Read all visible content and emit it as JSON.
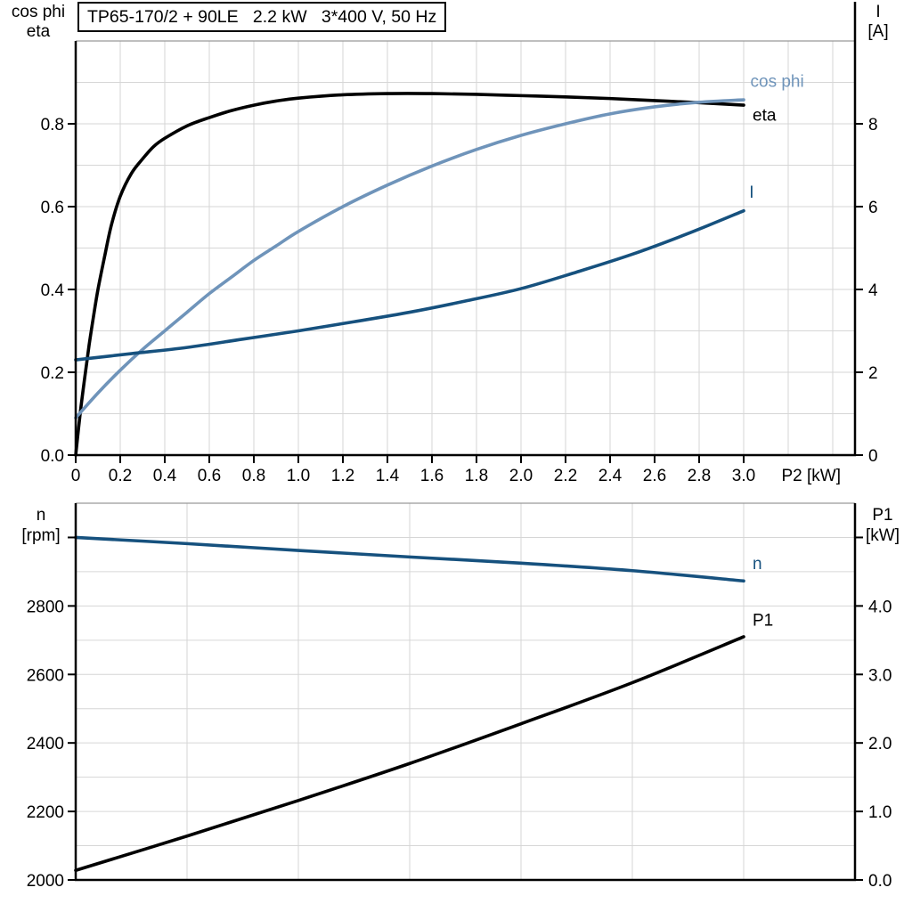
{
  "chart_data": [
    {
      "type": "line",
      "title": "TP65-170/2 + 90LE   2.2 kW   3*400 V, 50 Hz",
      "x_axis": {
        "label": "P2 [kW]",
        "label_x": 3.17,
        "min": 0,
        "max": 3.5,
        "grid_step": 0.2,
        "ticks": [
          {
            "v": 0,
            "t": "0"
          },
          {
            "v": 0.2,
            "t": "0.2"
          },
          {
            "v": 0.4,
            "t": "0.4"
          },
          {
            "v": 0.6,
            "t": "0.6"
          },
          {
            "v": 0.8,
            "t": "0.8"
          },
          {
            "v": 1.0,
            "t": "1.0"
          },
          {
            "v": 1.2,
            "t": "1.2"
          },
          {
            "v": 1.4,
            "t": "1.4"
          },
          {
            "v": 1.6,
            "t": "1.6"
          },
          {
            "v": 1.8,
            "t": "1.8"
          },
          {
            "v": 2.0,
            "t": "2.0"
          },
          {
            "v": 2.2,
            "t": "2.2"
          },
          {
            "v": 2.4,
            "t": "2.4"
          },
          {
            "v": 2.6,
            "t": "2.6"
          },
          {
            "v": 2.8,
            "t": "2.8"
          },
          {
            "v": 3.0,
            "t": "3.0"
          }
        ]
      },
      "left_axis": {
        "label_lines": [
          "cos phi",
          "eta"
        ],
        "min": 0,
        "max": 1.0,
        "grid_step": 0.1,
        "ticks": [
          {
            "v": 0.0,
            "t": "0.0"
          },
          {
            "v": 0.2,
            "t": "0.2"
          },
          {
            "v": 0.4,
            "t": "0.4"
          },
          {
            "v": 0.6,
            "t": "0.6"
          },
          {
            "v": 0.8,
            "t": "0.8"
          }
        ]
      },
      "right_axis": {
        "label_lines": [
          "I",
          "[A]"
        ],
        "min": 0,
        "max": 10,
        "ticks": [
          {
            "v": 0,
            "t": "0"
          },
          {
            "v": 2,
            "t": "2"
          },
          {
            "v": 4,
            "t": "4"
          },
          {
            "v": 6,
            "t": "6"
          },
          {
            "v": 8,
            "t": "8"
          }
        ]
      },
      "series": [
        {
          "name": "eta",
          "label": "eta",
          "color": "#000000",
          "axis": "left",
          "label_pos": [
            3.04,
            0.807
          ],
          "points": [
            [
              0,
              0
            ],
            [
              0.02,
              0.1
            ],
            [
              0.04,
              0.185
            ],
            [
              0.06,
              0.265
            ],
            [
              0.08,
              0.335
            ],
            [
              0.1,
              0.4
            ],
            [
              0.13,
              0.48
            ],
            [
              0.16,
              0.555
            ],
            [
              0.2,
              0.625
            ],
            [
              0.25,
              0.68
            ],
            [
              0.3,
              0.715
            ],
            [
              0.35,
              0.745
            ],
            [
              0.4,
              0.765
            ],
            [
              0.5,
              0.795
            ],
            [
              0.6,
              0.815
            ],
            [
              0.7,
              0.832
            ],
            [
              0.8,
              0.845
            ],
            [
              0.9,
              0.855
            ],
            [
              1.0,
              0.862
            ],
            [
              1.2,
              0.87
            ],
            [
              1.4,
              0.873
            ],
            [
              1.6,
              0.873
            ],
            [
              1.8,
              0.871
            ],
            [
              2.0,
              0.868
            ],
            [
              2.2,
              0.865
            ],
            [
              2.4,
              0.861
            ],
            [
              2.6,
              0.856
            ],
            [
              2.8,
              0.851
            ],
            [
              3.0,
              0.845
            ]
          ]
        },
        {
          "name": "cos phi",
          "label": "cos phi",
          "color": "#6f94ba",
          "axis": "left",
          "label_pos": [
            3.03,
            0.889
          ],
          "points": [
            [
              0,
              0.09
            ],
            [
              0.1,
              0.15
            ],
            [
              0.2,
              0.205
            ],
            [
              0.3,
              0.255
            ],
            [
              0.4,
              0.3
            ],
            [
              0.5,
              0.345
            ],
            [
              0.6,
              0.39
            ],
            [
              0.7,
              0.43
            ],
            [
              0.8,
              0.47
            ],
            [
              0.9,
              0.505
            ],
            [
              1.0,
              0.54
            ],
            [
              1.2,
              0.6
            ],
            [
              1.4,
              0.652
            ],
            [
              1.6,
              0.698
            ],
            [
              1.8,
              0.738
            ],
            [
              2.0,
              0.772
            ],
            [
              2.2,
              0.8
            ],
            [
              2.4,
              0.824
            ],
            [
              2.6,
              0.841
            ],
            [
              2.8,
              0.852
            ],
            [
              3.0,
              0.858
            ]
          ]
        },
        {
          "name": "I",
          "label": "I",
          "color": "#16517e",
          "axis": "right",
          "label_pos": [
            3.025,
            6.22
          ],
          "points": [
            [
              0,
              2.3
            ],
            [
              0.25,
              2.45
            ],
            [
              0.5,
              2.6
            ],
            [
              0.75,
              2.8
            ],
            [
              1.0,
              3.0
            ],
            [
              1.25,
              3.22
            ],
            [
              1.5,
              3.45
            ],
            [
              1.75,
              3.72
            ],
            [
              2.0,
              4.02
            ],
            [
              2.25,
              4.42
            ],
            [
              2.5,
              4.85
            ],
            [
              2.75,
              5.35
            ],
            [
              3.0,
              5.9
            ]
          ]
        }
      ]
    },
    {
      "type": "line",
      "x_axis": {
        "min": 0,
        "max": 3.5,
        "grid_step": 0.5
      },
      "left_axis": {
        "label_lines": [
          "n",
          "[rpm]"
        ],
        "min": 2000,
        "max": 3100,
        "grid_step": 100,
        "ticks": [
          {
            "v": 2000,
            "t": "2000"
          },
          {
            "v": 2200,
            "t": "2200"
          },
          {
            "v": 2400,
            "t": "2400"
          },
          {
            "v": 2600,
            "t": "2600"
          },
          {
            "v": 2800,
            "t": "2800"
          },
          {
            "v": 3000,
            "t": ""
          }
        ]
      },
      "right_axis": {
        "label_lines": [
          "P1",
          "[kW]"
        ],
        "min": 0,
        "max": 5.5,
        "ticks": [
          {
            "v": 0,
            "t": "0.0"
          },
          {
            "v": 1,
            "t": "1.0"
          },
          {
            "v": 2,
            "t": "2.0"
          },
          {
            "v": 3,
            "t": "3.0"
          },
          {
            "v": 4,
            "t": "4.0"
          },
          {
            "v": 5,
            "t": ""
          }
        ]
      },
      "series": [
        {
          "name": "n",
          "label": "n",
          "color": "#16517e",
          "axis": "left",
          "label_pos": [
            3.04,
            2907
          ],
          "points": [
            [
              0,
              3000
            ],
            [
              0.5,
              2982
            ],
            [
              1.0,
              2962
            ],
            [
              1.5,
              2943
            ],
            [
              2.0,
              2925
            ],
            [
              2.5,
              2903
            ],
            [
              3.0,
              2873
            ]
          ]
        },
        {
          "name": "P1",
          "label": "P1",
          "color": "#000000",
          "axis": "right",
          "label_pos": [
            3.04,
            3.71
          ],
          "points": [
            [
              0,
              0.14
            ],
            [
              0.5,
              0.64
            ],
            [
              1.0,
              1.16
            ],
            [
              1.5,
              1.7
            ],
            [
              2.0,
              2.28
            ],
            [
              2.5,
              2.88
            ],
            [
              3.0,
              3.55
            ]
          ]
        }
      ]
    }
  ],
  "style": {
    "grid_color": "#d6d6d6",
    "top_border_color": "#999999",
    "axis_color": "#000000"
  }
}
